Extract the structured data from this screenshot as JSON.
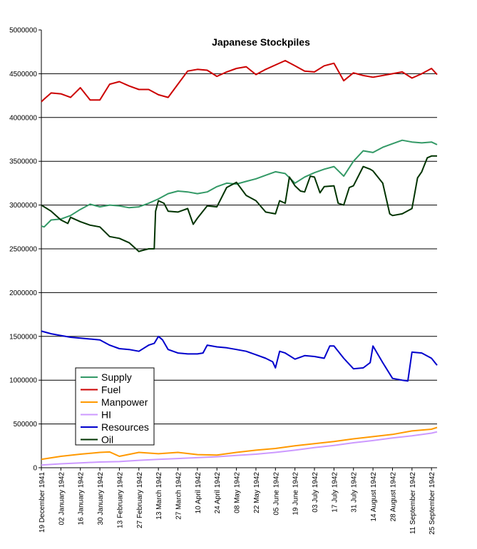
{
  "chart_data": {
    "type": "line",
    "title": "Japanese Stockpiles",
    "xlabel": "",
    "ylabel": "",
    "ylim": [
      0,
      5000000
    ],
    "yticks": [
      0,
      500000,
      1000000,
      1500000,
      2000000,
      2500000,
      3000000,
      3500000,
      4000000,
      4500000,
      5000000
    ],
    "ytick_labels": [
      "0",
      "500000",
      "1000000",
      "1500000",
      "2000000",
      "2500000",
      "3000000",
      "3500000",
      "4000000",
      "4500000",
      "5000000"
    ],
    "gridlines": [
      500000,
      1000000,
      1500000,
      2000000,
      2500000,
      3000000,
      3500000,
      4000000,
      4500000
    ],
    "x_start": "19 December 1941",
    "x_end": "29 September 1942",
    "xtick_labels": [
      "19 December 1941",
      "02 January 1942",
      "16 January 1942",
      "30 January 1942",
      "13 February 1942",
      "27 February 1942",
      "13 March 1942",
      "27 March 1942",
      "10 April 1942",
      "24 April 1942",
      "08 May 1942",
      "22 May 1942",
      "05 June 1942",
      "19 June 1942",
      "03 July 1942",
      "17 July 1942",
      "31 July 1942",
      "14 August 1942",
      "28 August 1942",
      "11 September 1942",
      "25 September 1942"
    ],
    "legend_position": "lower-left",
    "series": [
      {
        "name": "Supply",
        "color": "#339966",
        "x": [
          "19 December 1941",
          "21 December 1941",
          "26 December 1941",
          "02 January 1942",
          "09 January 1942",
          "16 January 1942",
          "23 January 1942",
          "30 January 1942",
          "06 February 1942",
          "13 February 1942",
          "20 February 1942",
          "27 February 1942",
          "06 March 1942",
          "13 March 1942",
          "20 March 1942",
          "27 March 1942",
          "03 April 1942",
          "10 April 1942",
          "17 April 1942",
          "24 April 1942",
          "01 May 1942",
          "08 May 1942",
          "15 May 1942",
          "22 May 1942",
          "29 May 1942",
          "05 June 1942",
          "12 June 1942",
          "19 June 1942",
          "26 June 1942",
          "03 July 1942",
          "10 July 1942",
          "17 July 1942",
          "24 July 1942",
          "31 July 1942",
          "07 August 1942",
          "14 August 1942",
          "21 August 1942",
          "28 August 1942",
          "04 September 1942",
          "11 September 1942",
          "18 September 1942",
          "25 September 1942",
          "29 September 1942"
        ],
        "y": [
          2760000,
          2750000,
          2830000,
          2840000,
          2880000,
          2950000,
          3010000,
          2980000,
          3000000,
          2990000,
          2970000,
          2980000,
          3020000,
          3070000,
          3130000,
          3160000,
          3150000,
          3130000,
          3150000,
          3210000,
          3250000,
          3240000,
          3270000,
          3300000,
          3340000,
          3380000,
          3360000,
          3250000,
          3320000,
          3370000,
          3410000,
          3440000,
          3330000,
          3500000,
          3620000,
          3600000,
          3660000,
          3700000,
          3740000,
          3720000,
          3710000,
          3720000,
          3690000
        ]
      },
      {
        "name": "Fuel",
        "color": "#cc0000",
        "x": [
          "19 December 1941",
          "21 December 1941",
          "26 December 1941",
          "02 January 1942",
          "09 January 1942",
          "16 January 1942",
          "23 January 1942",
          "30 January 1942",
          "06 February 1942",
          "13 February 1942",
          "20 February 1942",
          "27 February 1942",
          "06 March 1942",
          "13 March 1942",
          "20 March 1942",
          "27 March 1942",
          "03 April 1942",
          "10 April 1942",
          "17 April 1942",
          "24 April 1942",
          "01 May 1942",
          "08 May 1942",
          "15 May 1942",
          "22 May 1942",
          "29 May 1942",
          "05 June 1942",
          "12 June 1942",
          "19 June 1942",
          "26 June 1942",
          "03 July 1942",
          "10 July 1942",
          "17 July 1942",
          "24 July 1942",
          "31 July 1942",
          "07 August 1942",
          "14 August 1942",
          "21 August 1942",
          "28 August 1942",
          "04 September 1942",
          "11 September 1942",
          "18 September 1942",
          "25 September 1942",
          "29 September 1942"
        ],
        "y": [
          4180000,
          4210000,
          4280000,
          4270000,
          4230000,
          4340000,
          4200000,
          4200000,
          4380000,
          4410000,
          4360000,
          4320000,
          4320000,
          4260000,
          4230000,
          4380000,
          4530000,
          4550000,
          4540000,
          4470000,
          4520000,
          4560000,
          4580000,
          4490000,
          4550000,
          4600000,
          4650000,
          4590000,
          4530000,
          4520000,
          4590000,
          4620000,
          4420000,
          4510000,
          4480000,
          4460000,
          4480000,
          4500000,
          4520000,
          4450000,
          4500000,
          4560000,
          4490000
        ]
      },
      {
        "name": "Manpower",
        "color": "#ff9900",
        "x": [
          "19 December 1941",
          "02 January 1942",
          "16 January 1942",
          "30 January 1942",
          "06 February 1942",
          "13 February 1942",
          "27 February 1942",
          "13 March 1942",
          "27 March 1942",
          "10 April 1942",
          "24 April 1942",
          "08 May 1942",
          "22 May 1942",
          "05 June 1942",
          "19 June 1942",
          "03 July 1942",
          "17 July 1942",
          "31 July 1942",
          "14 August 1942",
          "28 August 1942",
          "11 September 1942",
          "25 September 1942",
          "29 September 1942"
        ],
        "y": [
          95000,
          130000,
          155000,
          175000,
          180000,
          130000,
          175000,
          160000,
          175000,
          150000,
          145000,
          175000,
          200000,
          220000,
          250000,
          275000,
          300000,
          330000,
          355000,
          380000,
          420000,
          440000,
          460000
        ]
      },
      {
        "name": "HI",
        "color": "#cc99ff",
        "x": [
          "19 December 1941",
          "02 January 1942",
          "16 January 1942",
          "30 January 1942",
          "13 February 1942",
          "27 February 1942",
          "13 March 1942",
          "27 March 1942",
          "10 April 1942",
          "24 April 1942",
          "08 May 1942",
          "22 May 1942",
          "05 June 1942",
          "19 June 1942",
          "03 July 1942",
          "17 July 1942",
          "31 July 1942",
          "14 August 1942",
          "28 August 1942",
          "11 September 1942",
          "25 September 1942",
          "29 September 1942"
        ],
        "y": [
          30000,
          45000,
          55000,
          65000,
          70000,
          85000,
          95000,
          105000,
          115000,
          125000,
          140000,
          155000,
          175000,
          200000,
          230000,
          255000,
          285000,
          310000,
          340000,
          365000,
          395000,
          410000
        ]
      },
      {
        "name": "Resources",
        "color": "#0000cc",
        "x": [
          "19 December 1941",
          "26 December 1941",
          "02 January 1942",
          "09 January 1942",
          "16 January 1942",
          "23 January 1942",
          "30 January 1942",
          "06 February 1942",
          "13 February 1942",
          "20 February 1942",
          "27 February 1942",
          "06 March 1942",
          "10 March 1942",
          "13 March 1942",
          "16 March 1942",
          "20 March 1942",
          "27 March 1942",
          "03 April 1942",
          "10 April 1942",
          "14 April 1942",
          "17 April 1942",
          "24 April 1942",
          "01 May 1942",
          "08 May 1942",
          "15 May 1942",
          "22 May 1942",
          "29 May 1942",
          "03 June 1942",
          "05 June 1942",
          "08 June 1942",
          "12 June 1942",
          "19 June 1942",
          "26 June 1942",
          "03 July 1942",
          "10 July 1942",
          "14 July 1942",
          "17 July 1942",
          "24 July 1942",
          "31 July 1942",
          "07 August 1942",
          "12 August 1942",
          "14 August 1942",
          "21 August 1942",
          "28 August 1942",
          "04 September 1942",
          "08 September 1942",
          "11 September 1942",
          "18 September 1942",
          "25 September 1942",
          "29 September 1942"
        ],
        "y": [
          1560000,
          1530000,
          1510000,
          1490000,
          1480000,
          1470000,
          1460000,
          1400000,
          1360000,
          1350000,
          1330000,
          1400000,
          1420000,
          1500000,
          1460000,
          1350000,
          1310000,
          1300000,
          1300000,
          1310000,
          1400000,
          1380000,
          1370000,
          1350000,
          1330000,
          1290000,
          1250000,
          1210000,
          1140000,
          1330000,
          1310000,
          1240000,
          1280000,
          1270000,
          1250000,
          1390000,
          1390000,
          1250000,
          1130000,
          1140000,
          1200000,
          1390000,
          1200000,
          1020000,
          1000000,
          990000,
          1320000,
          1310000,
          1250000,
          1170000
        ]
      },
      {
        "name": "Oil",
        "color": "#003300",
        "x": [
          "19 December 1941",
          "26 December 1941",
          "02 January 1942",
          "07 January 1942",
          "09 January 1942",
          "16 January 1942",
          "23 January 1942",
          "30 January 1942",
          "06 February 1942",
          "13 February 1942",
          "20 February 1942",
          "27 February 1942",
          "01 March 1942",
          "06 March 1942",
          "10 March 1942",
          "11 March 1942",
          "13 March 1942",
          "17 March 1942",
          "20 March 1942",
          "27 March 1942",
          "03 April 1942",
          "07 April 1942",
          "10 April 1942",
          "17 April 1942",
          "24 April 1942",
          "01 May 1942",
          "08 May 1942",
          "15 May 1942",
          "22 May 1942",
          "29 May 1942",
          "05 June 1942",
          "08 June 1942",
          "12 June 1942",
          "15 June 1942",
          "19 June 1942",
          "23 June 1942",
          "26 June 1942",
          "30 June 1942",
          "03 July 1942",
          "07 July 1942",
          "10 July 1942",
          "17 July 1942",
          "20 July 1942",
          "24 July 1942",
          "28 July 1942",
          "31 July 1942",
          "07 August 1942",
          "12 August 1942",
          "14 August 1942",
          "21 August 1942",
          "26 August 1942",
          "28 August 1942",
          "04 September 1942",
          "11 September 1942",
          "15 September 1942",
          "18 September 1942",
          "22 September 1942",
          "25 September 1942",
          "29 September 1942"
        ],
        "y": [
          3000000,
          2930000,
          2830000,
          2790000,
          2860000,
          2810000,
          2770000,
          2750000,
          2640000,
          2620000,
          2570000,
          2470000,
          2480000,
          2500000,
          2500000,
          2930000,
          3050000,
          3020000,
          2930000,
          2920000,
          2960000,
          2780000,
          2850000,
          2990000,
          2980000,
          3200000,
          3260000,
          3110000,
          3050000,
          2920000,
          2900000,
          3050000,
          3020000,
          3320000,
          3220000,
          3160000,
          3150000,
          3330000,
          3320000,
          3140000,
          3210000,
          3220000,
          3020000,
          3000000,
          3200000,
          3220000,
          3440000,
          3410000,
          3390000,
          3250000,
          2900000,
          2880000,
          2900000,
          2960000,
          3310000,
          3380000,
          3540000,
          3560000,
          3560000
        ]
      }
    ]
  }
}
